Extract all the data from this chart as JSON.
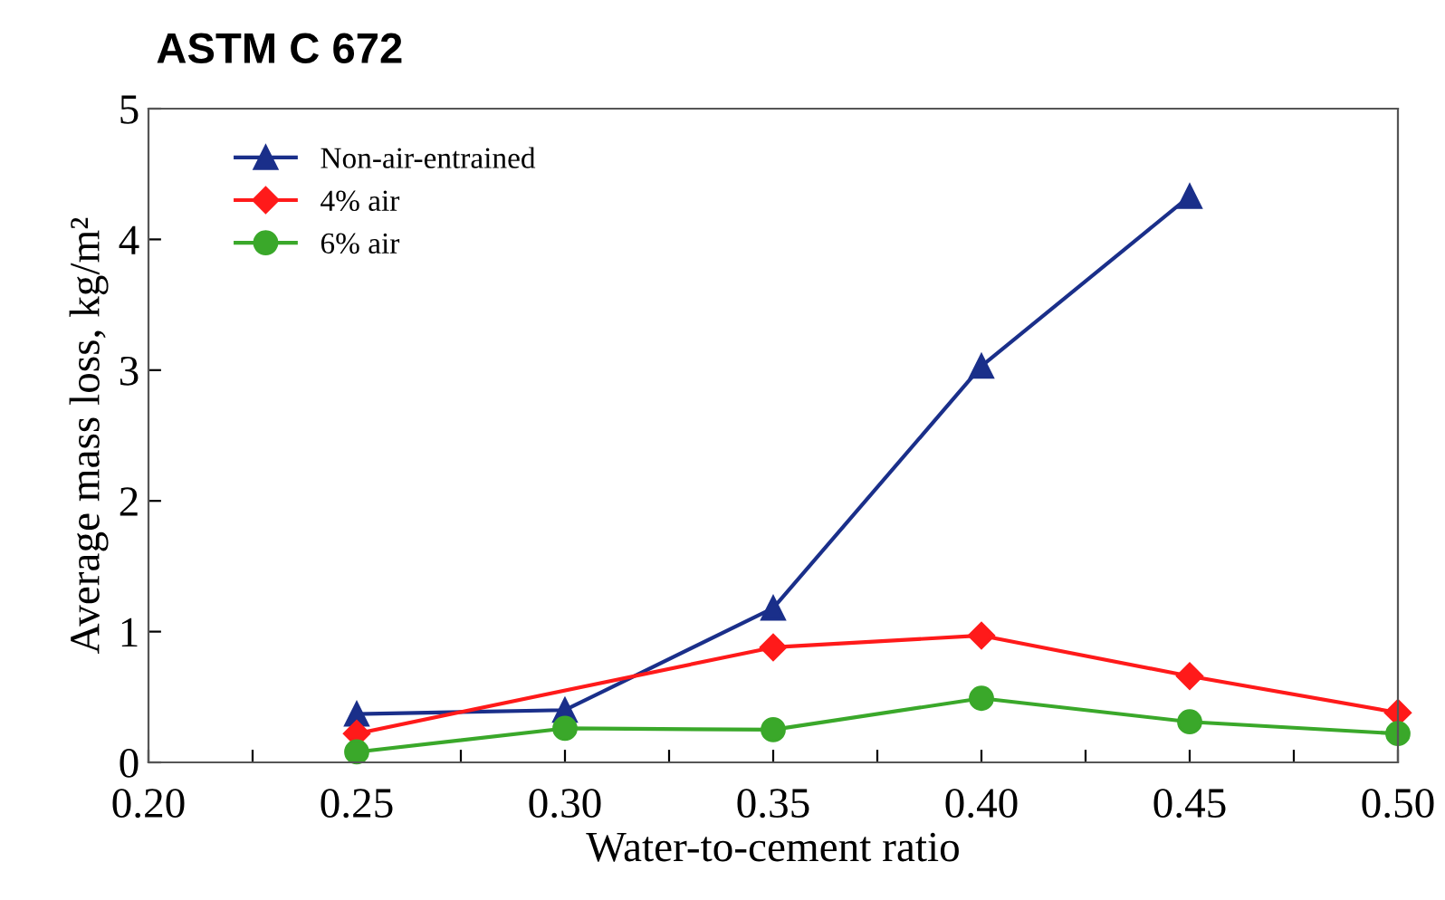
{
  "chart_data": {
    "type": "line",
    "title": "ASTM C 672",
    "xlabel": "Water-to-cement ratio",
    "ylabel": "Average mass loss, kg/m²",
    "xlim": [
      0.2,
      0.5
    ],
    "ylim": [
      0,
      5
    ],
    "xticks": [
      {
        "value": 0.2,
        "label": "0.20"
      },
      {
        "value": 0.225,
        "label": null
      },
      {
        "value": 0.25,
        "label": "0.25"
      },
      {
        "value": 0.275,
        "label": null
      },
      {
        "value": 0.3,
        "label": "0.30"
      },
      {
        "value": 0.325,
        "label": null
      },
      {
        "value": 0.35,
        "label": "0.35"
      },
      {
        "value": 0.375,
        "label": null
      },
      {
        "value": 0.4,
        "label": "0.40"
      },
      {
        "value": 0.425,
        "label": null
      },
      {
        "value": 0.45,
        "label": "0.45"
      },
      {
        "value": 0.475,
        "label": null
      },
      {
        "value": 0.5,
        "label": "0.50"
      }
    ],
    "yticks": [
      0,
      1,
      2,
      3,
      4,
      5
    ],
    "grid": false,
    "legend": "top left",
    "line_style": "solid",
    "series": [
      {
        "name": "Non-air-entrained",
        "color": "#1a2f8a",
        "marker": "triangle",
        "x": [
          0.25,
          0.3,
          0.35,
          0.4,
          0.45
        ],
        "values": [
          0.37,
          0.4,
          1.18,
          3.03,
          4.33
        ]
      },
      {
        "name": "4% air",
        "color": "#ff1a1a",
        "marker": "diamond",
        "x": [
          0.25,
          0.3,
          0.35,
          0.4,
          0.45,
          0.5
        ],
        "values": [
          0.22,
          null,
          0.88,
          0.97,
          0.66,
          0.38
        ]
      },
      {
        "name": "6% air",
        "color": "#3aa82a",
        "marker": "circle",
        "x": [
          0.25,
          0.3,
          0.35,
          0.4,
          0.45,
          0.5
        ],
        "values": [
          0.08,
          0.26,
          0.25,
          0.49,
          0.31,
          0.22
        ]
      }
    ]
  }
}
